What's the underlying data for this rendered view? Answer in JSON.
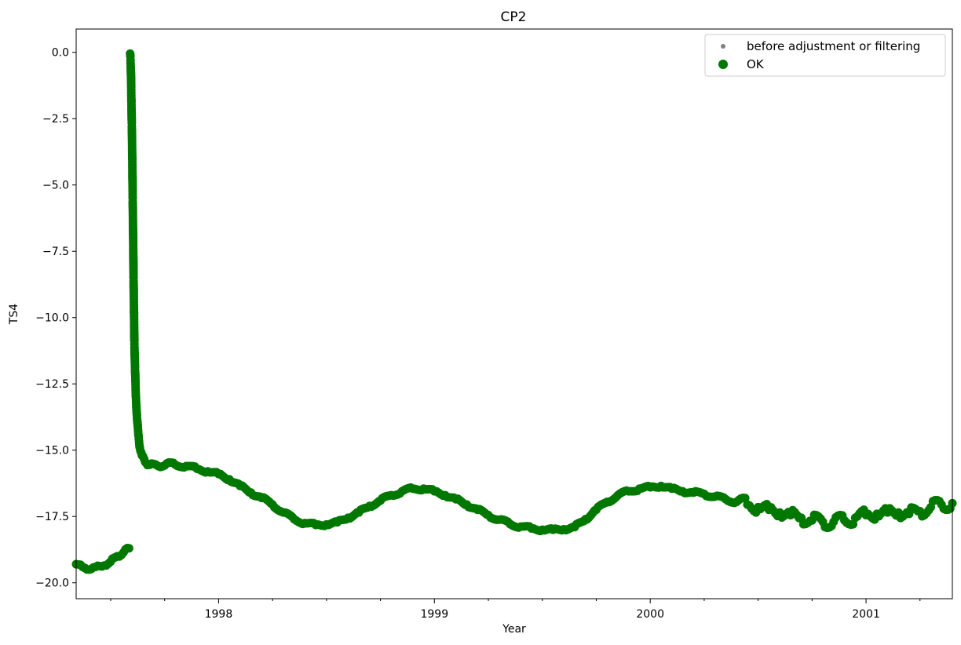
{
  "chart_data": {
    "type": "scatter",
    "title": "CP2",
    "xlabel": "Year",
    "ylabel": "TS4",
    "xlim": [
      1997.34,
      2001.4
    ],
    "ylim": [
      -20.6,
      0.88
    ],
    "x_ticks": [
      {
        "value": 1998.0,
        "label": "1998"
      },
      {
        "value": 1999.0,
        "label": "1999"
      },
      {
        "value": 2000.0,
        "label": "2000"
      },
      {
        "value": 2001.0,
        "label": "2001"
      }
    ],
    "y_ticks": [
      {
        "value": 0.0,
        "label": "0.0"
      },
      {
        "value": -2.5,
        "label": "−2.5"
      },
      {
        "value": -5.0,
        "label": "−5.0"
      },
      {
        "value": -7.5,
        "label": "−7.5"
      },
      {
        "value": -10.0,
        "label": "−10.0"
      },
      {
        "value": -12.5,
        "label": "−12.5"
      },
      {
        "value": -15.0,
        "label": "−15.0"
      },
      {
        "value": -17.5,
        "label": "−17.5"
      },
      {
        "value": -20.0,
        "label": "−20.0"
      }
    ],
    "legend": {
      "placement": "top-right",
      "entries": [
        {
          "label": "before adjustment or filtering",
          "color": "#808080",
          "marker": "small-dot"
        },
        {
          "label": "OK",
          "color": "#007800",
          "marker": "dot"
        }
      ]
    },
    "series": [
      {
        "name": "OK",
        "color": "#007800",
        "points": [
          [
            1997.34,
            -19.3
          ],
          [
            1997.37,
            -19.4
          ],
          [
            1997.4,
            -19.5
          ],
          [
            1997.43,
            -19.4
          ],
          [
            1997.47,
            -19.35
          ],
          [
            1997.5,
            -19.2
          ],
          [
            1997.53,
            -19.0
          ],
          [
            1997.56,
            -18.85
          ],
          [
            1997.585,
            -18.7
          ],
          [
            1997.59,
            -0.05
          ],
          [
            1997.592,
            -0.3
          ],
          [
            1997.594,
            -0.8
          ],
          [
            1997.596,
            -1.8
          ],
          [
            1997.598,
            -2.8
          ],
          [
            1997.6,
            -4.0
          ],
          [
            1997.602,
            -5.5
          ],
          [
            1997.604,
            -7.0
          ],
          [
            1997.606,
            -8.5
          ],
          [
            1997.608,
            -9.8
          ],
          [
            1997.61,
            -11.0
          ],
          [
            1997.613,
            -12.0
          ],
          [
            1997.617,
            -13.0
          ],
          [
            1997.622,
            -13.8
          ],
          [
            1997.628,
            -14.4
          ],
          [
            1997.635,
            -14.9
          ],
          [
            1997.645,
            -15.2
          ],
          [
            1997.66,
            -15.45
          ],
          [
            1997.68,
            -15.55
          ],
          [
            1997.72,
            -15.6
          ],
          [
            1997.76,
            -15.5
          ],
          [
            1997.8,
            -15.55
          ],
          [
            1997.85,
            -15.6
          ],
          [
            1997.9,
            -15.7
          ],
          [
            1997.95,
            -15.8
          ],
          [
            1998.0,
            -15.9
          ],
          [
            1998.05,
            -16.1
          ],
          [
            1998.1,
            -16.35
          ],
          [
            1998.15,
            -16.6
          ],
          [
            1998.2,
            -16.8
          ],
          [
            1998.25,
            -17.05
          ],
          [
            1998.3,
            -17.35
          ],
          [
            1998.35,
            -17.6
          ],
          [
            1998.4,
            -17.75
          ],
          [
            1998.45,
            -17.82
          ],
          [
            1998.5,
            -17.8
          ],
          [
            1998.55,
            -17.72
          ],
          [
            1998.6,
            -17.55
          ],
          [
            1998.65,
            -17.35
          ],
          [
            1998.7,
            -17.1
          ],
          [
            1998.75,
            -16.9
          ],
          [
            1998.8,
            -16.7
          ],
          [
            1998.85,
            -16.55
          ],
          [
            1998.9,
            -16.45
          ],
          [
            1998.95,
            -16.45
          ],
          [
            1999.0,
            -16.55
          ],
          [
            1999.05,
            -16.7
          ],
          [
            1999.1,
            -16.85
          ],
          [
            1999.15,
            -17.05
          ],
          [
            1999.2,
            -17.25
          ],
          [
            1999.25,
            -17.45
          ],
          [
            1999.3,
            -17.62
          ],
          [
            1999.35,
            -17.78
          ],
          [
            1999.4,
            -17.88
          ],
          [
            1999.45,
            -17.95
          ],
          [
            1999.5,
            -18.0
          ],
          [
            1999.55,
            -18.0
          ],
          [
            1999.6,
            -17.98
          ],
          [
            1999.65,
            -17.9
          ],
          [
            1999.7,
            -17.6
          ],
          [
            1999.75,
            -17.25
          ],
          [
            1999.8,
            -16.95
          ],
          [
            1999.85,
            -16.7
          ],
          [
            1999.9,
            -16.55
          ],
          [
            1999.95,
            -16.45
          ],
          [
            2000.0,
            -16.4
          ],
          [
            2000.05,
            -16.35
          ],
          [
            2000.1,
            -16.45
          ],
          [
            2000.15,
            -16.55
          ],
          [
            2000.2,
            -16.6
          ],
          [
            2000.25,
            -16.65
          ],
          [
            2000.3,
            -16.75
          ],
          [
            2000.35,
            -16.85
          ],
          [
            2000.4,
            -16.95
          ],
          [
            2000.45,
            -17.05
          ],
          [
            2000.5,
            -17.15
          ],
          [
            2000.55,
            -17.25
          ],
          [
            2000.6,
            -17.35
          ],
          [
            2000.65,
            -17.45
          ],
          [
            2000.7,
            -17.55
          ],
          [
            2000.75,
            -17.65
          ],
          [
            2000.8,
            -17.7
          ],
          [
            2000.85,
            -17.7
          ],
          [
            2000.9,
            -17.65
          ],
          [
            2000.95,
            -17.55
          ],
          [
            2001.0,
            -17.45
          ],
          [
            2001.05,
            -17.4
          ],
          [
            2001.1,
            -17.35
          ],
          [
            2001.15,
            -17.35
          ],
          [
            2001.2,
            -17.4
          ],
          [
            2001.25,
            -17.3
          ],
          [
            2001.3,
            -17.15
          ],
          [
            2001.35,
            -17.05
          ],
          [
            2001.4,
            -17.0
          ]
        ]
      }
    ]
  }
}
